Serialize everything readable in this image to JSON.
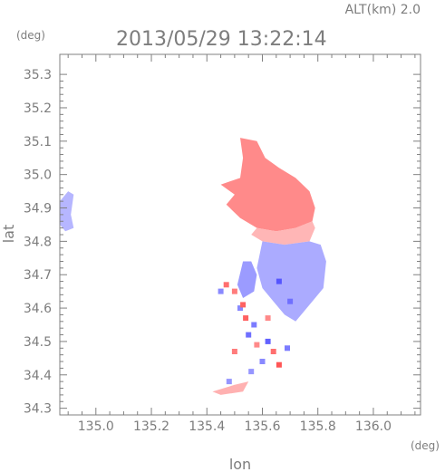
{
  "header": {
    "altitude_label": "ALT(km)  2.0",
    "datetime": "2013/05/29 13:22:14"
  },
  "chart_data": {
    "type": "heatmap",
    "title": "2013/05/29 13:22:14",
    "xlabel": "lon",
    "ylabel": "lat",
    "x_unit": "(deg)",
    "y_unit": "(deg)",
    "xlim": [
      134.87,
      136.17
    ],
    "ylim": [
      34.28,
      35.36
    ],
    "x_ticks": [
      135.0,
      135.2,
      135.4,
      135.6,
      135.8,
      136.0
    ],
    "x_tick_labels": [
      "135.0",
      "135.2",
      "135.4",
      "135.6",
      "135.8",
      "136.0"
    ],
    "y_ticks": [
      34.3,
      34.4,
      34.5,
      34.6,
      34.7,
      34.8,
      34.9,
      35.0,
      35.1,
      35.2,
      35.3
    ],
    "y_tick_labels": [
      "34.3",
      "34.4",
      "34.5",
      "34.6",
      "34.7",
      "34.8",
      "34.9",
      "35.0",
      "35.1",
      "35.2",
      "35.3"
    ],
    "grid": false,
    "colors": {
      "positive": "#ff9ea6",
      "negative": "#a6a6ff",
      "frame": "#808080"
    },
    "regions": [
      {
        "sign": "positive",
        "intensity": 0.75,
        "polygon": [
          [
            135.52,
            35.11
          ],
          [
            135.58,
            35.1
          ],
          [
            135.61,
            35.05
          ],
          [
            135.66,
            35.02
          ],
          [
            135.72,
            34.99
          ],
          [
            135.77,
            34.95
          ],
          [
            135.79,
            34.9
          ],
          [
            135.78,
            34.86
          ],
          [
            135.72,
            34.84
          ],
          [
            135.65,
            34.83
          ],
          [
            135.58,
            34.84
          ],
          [
            135.52,
            34.87
          ],
          [
            135.47,
            34.91
          ],
          [
            135.5,
            34.94
          ],
          [
            135.45,
            34.97
          ],
          [
            135.52,
            34.99
          ],
          [
            135.53,
            35.05
          ]
        ]
      },
      {
        "sign": "positive",
        "intensity": 0.35,
        "polygon": [
          [
            135.58,
            34.84
          ],
          [
            135.65,
            34.83
          ],
          [
            135.72,
            34.84
          ],
          [
            135.78,
            34.86
          ],
          [
            135.79,
            34.84
          ],
          [
            135.77,
            34.8
          ],
          [
            135.68,
            34.79
          ],
          [
            135.6,
            34.8
          ],
          [
            135.56,
            34.82
          ]
        ]
      },
      {
        "sign": "negative",
        "intensity": 0.45,
        "polygon": [
          [
            135.6,
            34.8
          ],
          [
            135.68,
            34.79
          ],
          [
            135.77,
            34.8
          ],
          [
            135.81,
            34.79
          ],
          [
            135.83,
            34.74
          ],
          [
            135.82,
            34.66
          ],
          [
            135.79,
            34.63
          ],
          [
            135.75,
            34.59
          ],
          [
            135.72,
            34.56
          ],
          [
            135.68,
            34.58
          ],
          [
            135.64,
            34.62
          ],
          [
            135.6,
            34.66
          ],
          [
            135.58,
            34.72
          ]
        ]
      },
      {
        "sign": "negative",
        "intensity": 0.6,
        "polygon": [
          [
            135.53,
            34.74
          ],
          [
            135.56,
            34.74
          ],
          [
            135.58,
            34.7
          ],
          [
            135.57,
            34.65
          ],
          [
            135.53,
            34.63
          ],
          [
            135.51,
            34.67
          ]
        ]
      },
      {
        "sign": "negative",
        "intensity": 0.35,
        "polygon": [
          [
            134.87,
            34.92
          ],
          [
            134.9,
            34.95
          ],
          [
            134.92,
            34.94
          ],
          [
            134.91,
            34.88
          ],
          [
            134.92,
            34.84
          ],
          [
            134.89,
            34.83
          ],
          [
            134.87,
            34.85
          ]
        ]
      },
      {
        "sign": "positive",
        "intensity": 0.4,
        "polygon": [
          [
            135.42,
            34.35
          ],
          [
            135.5,
            34.37
          ],
          [
            135.55,
            34.38
          ],
          [
            135.53,
            34.35
          ],
          [
            135.45,
            34.34
          ]
        ]
      }
    ],
    "speckles": [
      {
        "lon": 135.47,
        "lat": 34.67,
        "sign": "positive",
        "intensity": 0.8
      },
      {
        "lon": 135.5,
        "lat": 34.65,
        "sign": "positive",
        "intensity": 0.7
      },
      {
        "lon": 135.52,
        "lat": 34.6,
        "sign": "negative",
        "intensity": 0.6
      },
      {
        "lon": 135.54,
        "lat": 34.57,
        "sign": "positive",
        "intensity": 0.9
      },
      {
        "lon": 135.57,
        "lat": 34.55,
        "sign": "negative",
        "intensity": 0.7
      },
      {
        "lon": 135.55,
        "lat": 34.52,
        "sign": "negative",
        "intensity": 0.8
      },
      {
        "lon": 135.58,
        "lat": 34.49,
        "sign": "positive",
        "intensity": 0.6
      },
      {
        "lon": 135.62,
        "lat": 34.5,
        "sign": "negative",
        "intensity": 0.9
      },
      {
        "lon": 135.64,
        "lat": 34.47,
        "sign": "positive",
        "intensity": 0.8
      },
      {
        "lon": 135.6,
        "lat": 34.44,
        "sign": "negative",
        "intensity": 0.6
      },
      {
        "lon": 135.66,
        "lat": 34.43,
        "sign": "positive",
        "intensity": 1.0
      },
      {
        "lon": 135.69,
        "lat": 34.48,
        "sign": "negative",
        "intensity": 0.7
      },
      {
        "lon": 135.5,
        "lat": 34.47,
        "sign": "positive",
        "intensity": 0.7
      },
      {
        "lon": 135.56,
        "lat": 34.41,
        "sign": "negative",
        "intensity": 0.5
      },
      {
        "lon": 135.48,
        "lat": 34.38,
        "sign": "negative",
        "intensity": 0.5
      },
      {
        "lon": 135.62,
        "lat": 34.57,
        "sign": "positive",
        "intensity": 0.6
      },
      {
        "lon": 135.66,
        "lat": 34.68,
        "sign": "negative",
        "intensity": 1.0
      },
      {
        "lon": 135.7,
        "lat": 34.62,
        "sign": "negative",
        "intensity": 0.8
      },
      {
        "lon": 135.53,
        "lat": 34.61,
        "sign": "positive",
        "intensity": 0.9
      },
      {
        "lon": 135.45,
        "lat": 34.65,
        "sign": "negative",
        "intensity": 0.6
      }
    ]
  }
}
